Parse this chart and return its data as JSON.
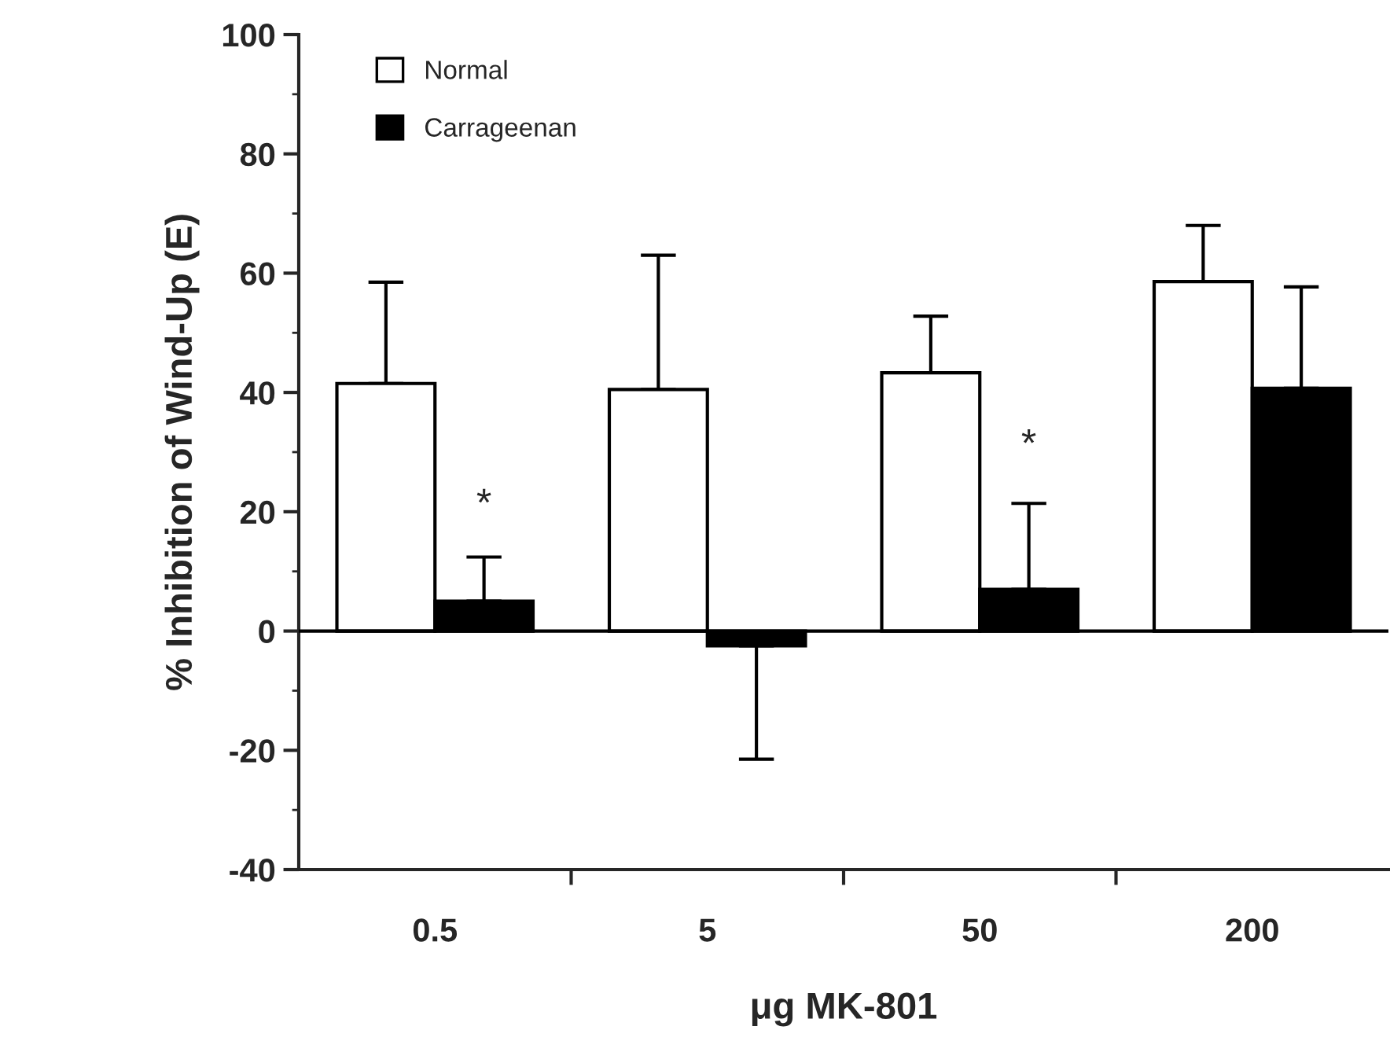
{
  "chart_data": {
    "type": "bar",
    "xlabel": "μg MK-801",
    "ylabel": "% Inhibition of Wind-Up (E)",
    "categories": [
      "0.5",
      "5",
      "50",
      "200"
    ],
    "series": [
      {
        "name": "Normal",
        "color": "#ffffff",
        "values": [
          41.5,
          40.5,
          43.3,
          58.6
        ],
        "errors": [
          [
            41.5,
            58.5
          ],
          [
            40.5,
            63
          ],
          [
            43.3,
            52.8
          ],
          [
            58.6,
            68
          ]
        ]
      },
      {
        "name": "Carrageenan",
        "color": "#000000",
        "values": [
          5,
          -2.5,
          7,
          40.7
        ],
        "errors": [
          [
            5,
            12.4
          ],
          [
            -21.5,
            -2.5
          ],
          [
            7,
            21.4
          ],
          [
            40.7,
            57.7
          ]
        ]
      }
    ],
    "ylim": [
      -40,
      100
    ],
    "yticks": [
      -40,
      -20,
      0,
      20,
      40,
      60,
      80,
      100
    ],
    "ref_lines": [
      {
        "axis": "y",
        "value": 0
      }
    ],
    "annotations": [
      {
        "text": "*",
        "x": "0.5",
        "y": 21
      },
      {
        "text": "*",
        "x": "50",
        "y": 31
      }
    ],
    "legend": "top left",
    "grid": false
  }
}
